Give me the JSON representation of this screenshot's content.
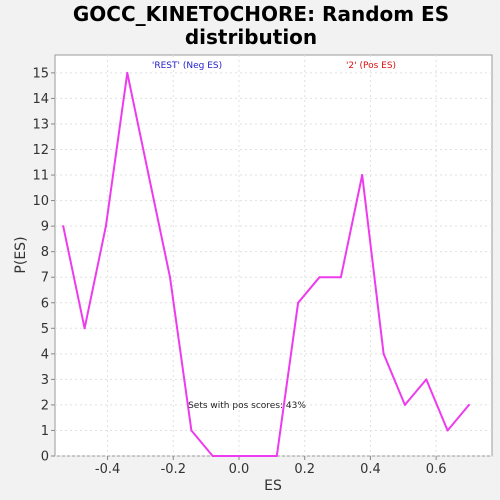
{
  "chart_data": {
    "type": "line",
    "title_line1": "GOCC_KINETOCHORE: Random ES",
    "title_line2": "distribution",
    "xlabel": "ES",
    "ylabel": "P(ES)",
    "xlim": [
      -0.56,
      0.77
    ],
    "ylim": [
      0,
      15.7
    ],
    "x_ticks": [
      -0.4,
      -0.2,
      0.0,
      0.2,
      0.4,
      0.6
    ],
    "x_tick_labels": [
      "-0.4",
      "-0.2",
      "0.0",
      "0.2",
      "0.4",
      "0.6"
    ],
    "y_ticks": [
      0,
      1,
      2,
      3,
      4,
      5,
      6,
      7,
      8,
      9,
      10,
      11,
      12,
      13,
      14,
      15
    ],
    "y_tick_labels": [
      "0",
      "1",
      "2",
      "3",
      "4",
      "5",
      "6",
      "7",
      "8",
      "9",
      "10",
      "11",
      "12",
      "13",
      "14",
      "15"
    ],
    "grid": true,
    "series": [
      {
        "color": "#ee3bee",
        "x": [
          -0.535,
          -0.47,
          -0.405,
          -0.34,
          -0.275,
          -0.21,
          -0.145,
          -0.08,
          -0.015,
          0.05,
          0.115,
          0.18,
          0.245,
          0.31,
          0.375,
          0.44,
          0.505,
          0.57,
          0.635,
          0.7
        ],
        "y": [
          9,
          5,
          9,
          15,
          11,
          7,
          1,
          0,
          0,
          0,
          0,
          6,
          7,
          7,
          11,
          4,
          2,
          3,
          1,
          2
        ]
      }
    ],
    "annotations": {
      "neg_label": "'REST' (Neg ES)",
      "pos_label": "'2' (Pos ES)",
      "sets_label": "Sets with pos scores: 43%"
    },
    "colors": {
      "neg_label": "#2222cc",
      "pos_label": "#dd1111",
      "sets_label": "#222222",
      "plot_bg": "#ffffff",
      "grid": "#e0e0e0"
    }
  }
}
